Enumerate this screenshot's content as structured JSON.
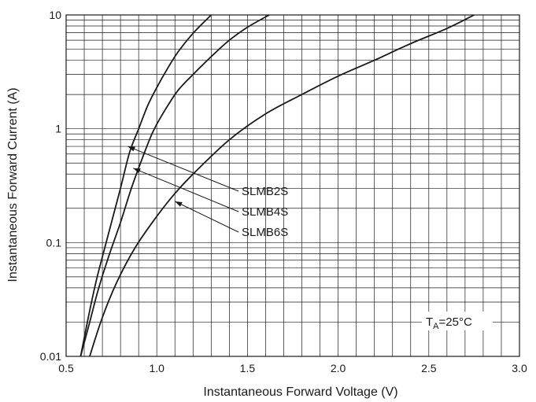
{
  "chart_data": {
    "type": "line",
    "xlabel": "Instantaneous Forward Voltage (V)",
    "ylabel": "Instantaneous Forward Current (A)",
    "xlim": [
      0.5,
      3.0
    ],
    "ylim": [
      0.01,
      10
    ],
    "y_scale": "log",
    "grid": true,
    "x_ticks": [
      "0.5",
      "1.0",
      "1.5",
      "2.0",
      "2.5",
      "3.0"
    ],
    "y_ticks": [
      "0.01",
      "0.1",
      "1",
      "10"
    ],
    "series": [
      {
        "name": "SLMB2S",
        "x": [
          0.58,
          0.62,
          0.66,
          0.7,
          0.75,
          0.8,
          0.85,
          0.9,
          0.95,
          1.0,
          1.06,
          1.12,
          1.2,
          1.3
        ],
        "y": [
          0.01,
          0.021,
          0.042,
          0.075,
          0.15,
          0.3,
          0.62,
          1.0,
          1.6,
          2.3,
          3.4,
          4.8,
          6.9,
          10
        ]
      },
      {
        "name": "SLMB4S",
        "x": [
          0.58,
          0.63,
          0.68,
          0.74,
          0.8,
          0.86,
          0.92,
          0.98,
          1.05,
          1.12,
          1.2,
          1.3,
          1.4,
          1.5,
          1.62
        ],
        "y": [
          0.01,
          0.02,
          0.04,
          0.08,
          0.15,
          0.3,
          0.55,
          0.95,
          1.5,
          2.2,
          3.0,
          4.3,
          6.0,
          7.8,
          10
        ]
      },
      {
        "name": "SLMB6S",
        "x": [
          0.63,
          0.7,
          0.78,
          0.88,
          1.0,
          1.1,
          1.2,
          1.4,
          1.6,
          1.8,
          2.0,
          2.2,
          2.4,
          2.6,
          2.75
        ],
        "y": [
          0.01,
          0.022,
          0.045,
          0.09,
          0.17,
          0.27,
          0.4,
          0.8,
          1.35,
          2.0,
          2.9,
          4.0,
          5.6,
          7.6,
          10
        ]
      }
    ],
    "labels": [
      "SLMB2S",
      "SLMB4S",
      "SLMB6S"
    ],
    "label_arrow_targets": [
      {
        "x": 0.84,
        "y": 0.7
      },
      {
        "x": 0.87,
        "y": 0.45
      },
      {
        "x": 1.1,
        "y": 0.23
      }
    ],
    "annotation": {
      "main": "T",
      "sub": "A",
      "rest": "=25°C"
    }
  }
}
